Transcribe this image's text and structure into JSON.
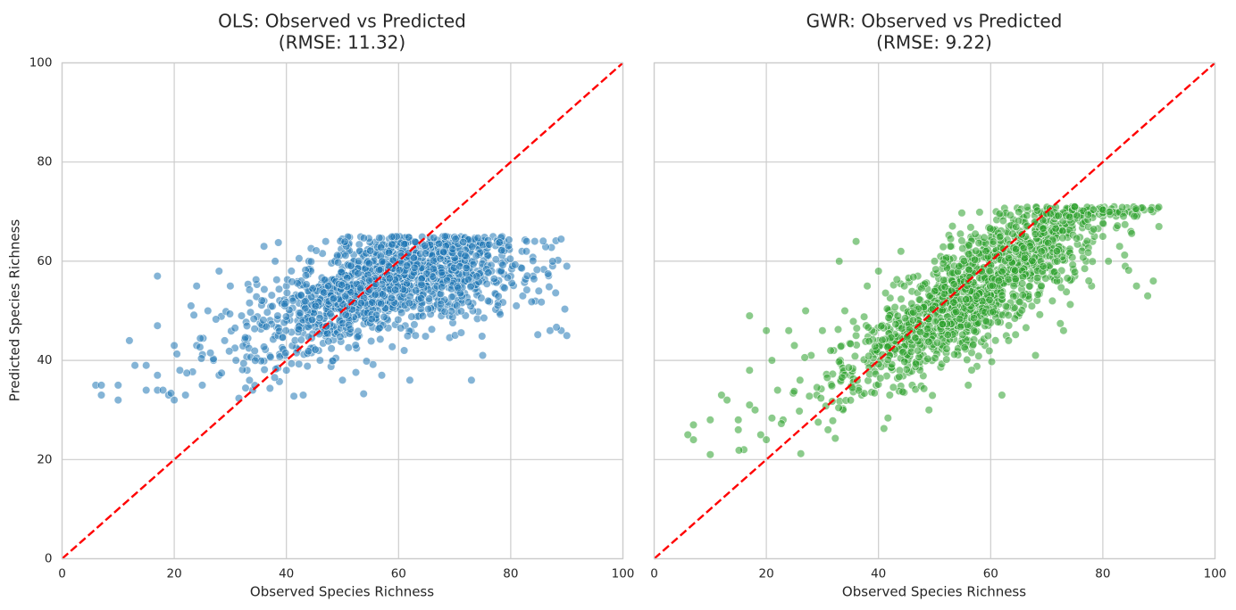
{
  "chart_data": [
    {
      "type": "scatter",
      "title_line1": "OLS: Observed vs Predicted",
      "title_line2": "(RMSE: 11.32)",
      "xlabel": "Observed Species Richness",
      "ylabel": "Predicted Species Richness",
      "xlim": [
        0,
        100
      ],
      "ylim": [
        0,
        100
      ],
      "xticks": [
        "0",
        "20",
        "40",
        "60",
        "80",
        "100"
      ],
      "yticks": [
        "0",
        "20",
        "40",
        "60",
        "80",
        "100"
      ],
      "grid": true,
      "color": "#1f77b4",
      "reference_line": {
        "from": [
          0,
          0
        ],
        "to": [
          100,
          100
        ],
        "color": "#ff0000",
        "style": "dashed"
      },
      "n_points": 1500,
      "points_sample": [
        [
          6,
          35
        ],
        [
          7,
          35
        ],
        [
          7,
          33
        ],
        [
          10,
          35
        ],
        [
          10,
          32
        ],
        [
          12,
          44
        ],
        [
          13,
          39
        ],
        [
          15,
          39
        ],
        [
          15,
          34
        ],
        [
          17,
          57
        ],
        [
          17,
          47
        ],
        [
          17,
          37
        ],
        [
          17,
          34
        ],
        [
          18,
          34
        ],
        [
          19,
          33
        ],
        [
          20,
          43
        ],
        [
          20,
          32
        ],
        [
          21,
          38
        ],
        [
          22,
          33
        ],
        [
          23,
          51
        ],
        [
          24,
          55
        ],
        [
          24,
          43
        ],
        [
          25,
          35
        ],
        [
          26,
          50
        ],
        [
          27,
          40
        ],
        [
          28,
          58
        ],
        [
          28,
          37
        ],
        [
          29,
          44
        ],
        [
          30,
          55
        ],
        [
          31,
          40
        ],
        [
          32,
          49
        ],
        [
          33,
          38
        ],
        [
          34,
          34
        ],
        [
          36,
          63
        ],
        [
          36,
          52
        ],
        [
          38,
          60
        ],
        [
          38,
          45
        ],
        [
          40,
          55
        ],
        [
          40,
          38
        ],
        [
          42,
          48
        ],
        [
          43,
          33
        ],
        [
          44,
          60
        ],
        [
          45,
          52
        ],
        [
          46,
          40
        ],
        [
          47,
          64
        ],
        [
          48,
          56
        ],
        [
          50,
          58
        ],
        [
          50,
          36
        ],
        [
          52,
          60
        ],
        [
          53,
          45
        ],
        [
          55,
          62
        ],
        [
          56,
          55
        ],
        [
          57,
          37
        ],
        [
          58,
          60
        ],
        [
          60,
          57
        ],
        [
          61,
          42
        ],
        [
          62,
          36
        ],
        [
          63,
          60
        ],
        [
          65,
          55
        ],
        [
          66,
          61
        ],
        [
          68,
          58
        ],
        [
          69,
          49
        ],
        [
          70,
          60
        ],
        [
          72,
          56
        ],
        [
          73,
          36
        ],
        [
          74,
          58
        ],
        [
          75,
          41
        ],
        [
          76,
          61
        ],
        [
          78,
          58
        ],
        [
          79,
          60
        ],
        [
          80,
          57
        ],
        [
          81,
          51
        ],
        [
          82,
          62
        ],
        [
          84,
          57
        ],
        [
          85,
          54
        ],
        [
          87,
          46
        ],
        [
          89,
          46
        ],
        [
          90,
          59
        ],
        [
          90,
          45
        ]
      ]
    },
    {
      "type": "scatter",
      "title_line1": "GWR: Observed vs Predicted",
      "title_line2": "(RMSE: 9.22)",
      "xlabel": "Observed Species Richness",
      "ylabel": "",
      "xlim": [
        0,
        100
      ],
      "ylim": [
        0,
        100
      ],
      "xticks": [
        "0",
        "20",
        "40",
        "60",
        "80",
        "100"
      ],
      "yticks": [],
      "grid": true,
      "color": "#2ca02c",
      "reference_line": {
        "from": [
          0,
          0
        ],
        "to": [
          100,
          100
        ],
        "color": "#ff0000",
        "style": "dashed"
      },
      "n_points": 1500,
      "points_sample": [
        [
          6,
          25
        ],
        [
          7,
          27
        ],
        [
          7,
          24
        ],
        [
          10,
          28
        ],
        [
          10,
          21
        ],
        [
          12,
          33
        ],
        [
          13,
          32
        ],
        [
          15,
          28
        ],
        [
          15,
          26
        ],
        [
          16,
          22
        ],
        [
          17,
          49
        ],
        [
          17,
          38
        ],
        [
          17,
          31
        ],
        [
          18,
          30
        ],
        [
          19,
          25
        ],
        [
          20,
          46
        ],
        [
          20,
          24
        ],
        [
          21,
          40
        ],
        [
          22,
          34
        ],
        [
          23,
          28
        ],
        [
          24,
          46
        ],
        [
          25,
          43
        ],
        [
          26,
          36
        ],
        [
          27,
          50
        ],
        [
          28,
          41
        ],
        [
          29,
          33
        ],
        [
          30,
          46
        ],
        [
          31,
          26
        ],
        [
          32,
          42
        ],
        [
          33,
          60
        ],
        [
          34,
          50
        ],
        [
          35,
          37
        ],
        [
          36,
          64
        ],
        [
          36,
          45
        ],
        [
          37,
          33
        ],
        [
          38,
          55
        ],
        [
          40,
          58
        ],
        [
          40,
          44
        ],
        [
          42,
          50
        ],
        [
          42,
          33
        ],
        [
          44,
          62
        ],
        [
          45,
          48
        ],
        [
          46,
          35
        ],
        [
          47,
          57
        ],
        [
          48,
          41
        ],
        [
          49,
          30
        ],
        [
          50,
          60
        ],
        [
          51,
          52
        ],
        [
          52,
          44
        ],
        [
          53,
          63
        ],
        [
          54,
          57
        ],
        [
          55,
          47
        ],
        [
          56,
          35
        ],
        [
          57,
          60
        ],
        [
          58,
          52
        ],
        [
          59,
          43
        ],
        [
          60,
          66
        ],
        [
          60,
          59
        ],
        [
          61,
          50
        ],
        [
          62,
          33
        ],
        [
          63,
          66
        ],
        [
          64,
          58
        ],
        [
          65,
          49
        ],
        [
          66,
          64
        ],
        [
          67,
          55
        ],
        [
          68,
          70
        ],
        [
          68,
          41
        ],
        [
          70,
          61
        ],
        [
          71,
          52
        ],
        [
          72,
          67
        ],
        [
          73,
          46
        ],
        [
          74,
          62
        ],
        [
          75,
          57
        ],
        [
          76,
          68
        ],
        [
          77,
          60
        ],
        [
          78,
          55
        ],
        [
          80,
          65
        ],
        [
          81,
          60
        ],
        [
          82,
          71
        ],
        [
          83,
          63
        ],
        [
          84,
          59
        ],
        [
          85,
          66
        ],
        [
          86,
          55
        ],
        [
          88,
          53
        ],
        [
          89,
          56
        ],
        [
          90,
          67
        ]
      ]
    }
  ]
}
